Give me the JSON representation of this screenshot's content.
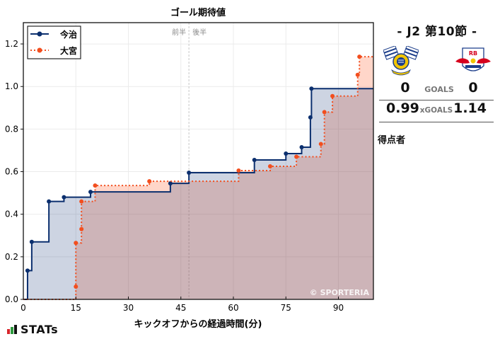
{
  "chart_data": {
    "type": "line",
    "subtype": "step-area",
    "title": "ゴール期待値",
    "xlabel": "キックオフからの経過時間(分)",
    "ylabel": "",
    "xlim": [
      0,
      100
    ],
    "ylim": [
      0,
      1.3
    ],
    "xticks": [
      0,
      15,
      30,
      45,
      60,
      75,
      90
    ],
    "yticks": [
      0.0,
      0.2,
      0.4,
      0.6,
      0.8,
      1.0,
      1.2
    ],
    "ytick_labels": [
      "0.0",
      "0.2",
      "0.4",
      "0.6",
      "0.8",
      "1.0",
      "1.2"
    ],
    "grid": true,
    "legend_position": "upper left",
    "halftime_marker": {
      "x": 47.3,
      "left_label": "前半",
      "right_label": "後半"
    },
    "watermark": "© SPORTERIA",
    "series": [
      {
        "name": "今治",
        "color": "#0b2f6e",
        "fill": "#cbd5e3",
        "linestyle": "solid",
        "points": [
          [
            0,
            0
          ],
          [
            1.2,
            0.135
          ],
          [
            2.4,
            0.27
          ],
          [
            7.3,
            0.46
          ],
          [
            11.6,
            0.48
          ],
          [
            19.2,
            0.505
          ],
          [
            42.0,
            0.545
          ],
          [
            47.3,
            0.595
          ],
          [
            66.0,
            0.655
          ],
          [
            75.0,
            0.685
          ],
          [
            79.5,
            0.715
          ],
          [
            82.0,
            0.855
          ],
          [
            82.3,
            0.99
          ],
          [
            100,
            0.99
          ]
        ]
      },
      {
        "name": "大宮",
        "color": "#f24e1e",
        "fill": "#ffd9cf",
        "linestyle": "dotted",
        "points": [
          [
            0,
            0
          ],
          [
            15.0,
            0.06
          ],
          [
            15.0,
            0.265
          ],
          [
            16.6,
            0.33
          ],
          [
            16.6,
            0.46
          ],
          [
            20.5,
            0.535
          ],
          [
            36.0,
            0.555
          ],
          [
            61.5,
            0.605
          ],
          [
            70.5,
            0.625
          ],
          [
            78.0,
            0.67
          ],
          [
            85.0,
            0.73
          ],
          [
            86.0,
            0.88
          ],
          [
            88.3,
            0.955
          ],
          [
            95.5,
            1.055
          ],
          [
            96.0,
            1.14
          ],
          [
            100,
            1.14
          ]
        ]
      }
    ]
  },
  "match": {
    "round_title": "- J2 第10節 -",
    "home_team": "今治",
    "away_team": "大宮",
    "home_crest": "imabari-crest-icon",
    "away_crest": "rb-omiya-crest-icon",
    "goals_label": "GOALS",
    "home_goals": "0",
    "away_goals": "0",
    "xgoals_label": "xGOALS",
    "home_xg": "0.99",
    "away_xg": "1.14",
    "scorers_label": "得点者"
  },
  "branding": {
    "logo_text": "STATs",
    "logo_colors": [
      "#d6262b",
      "#2e9a3e",
      "#111111"
    ]
  }
}
